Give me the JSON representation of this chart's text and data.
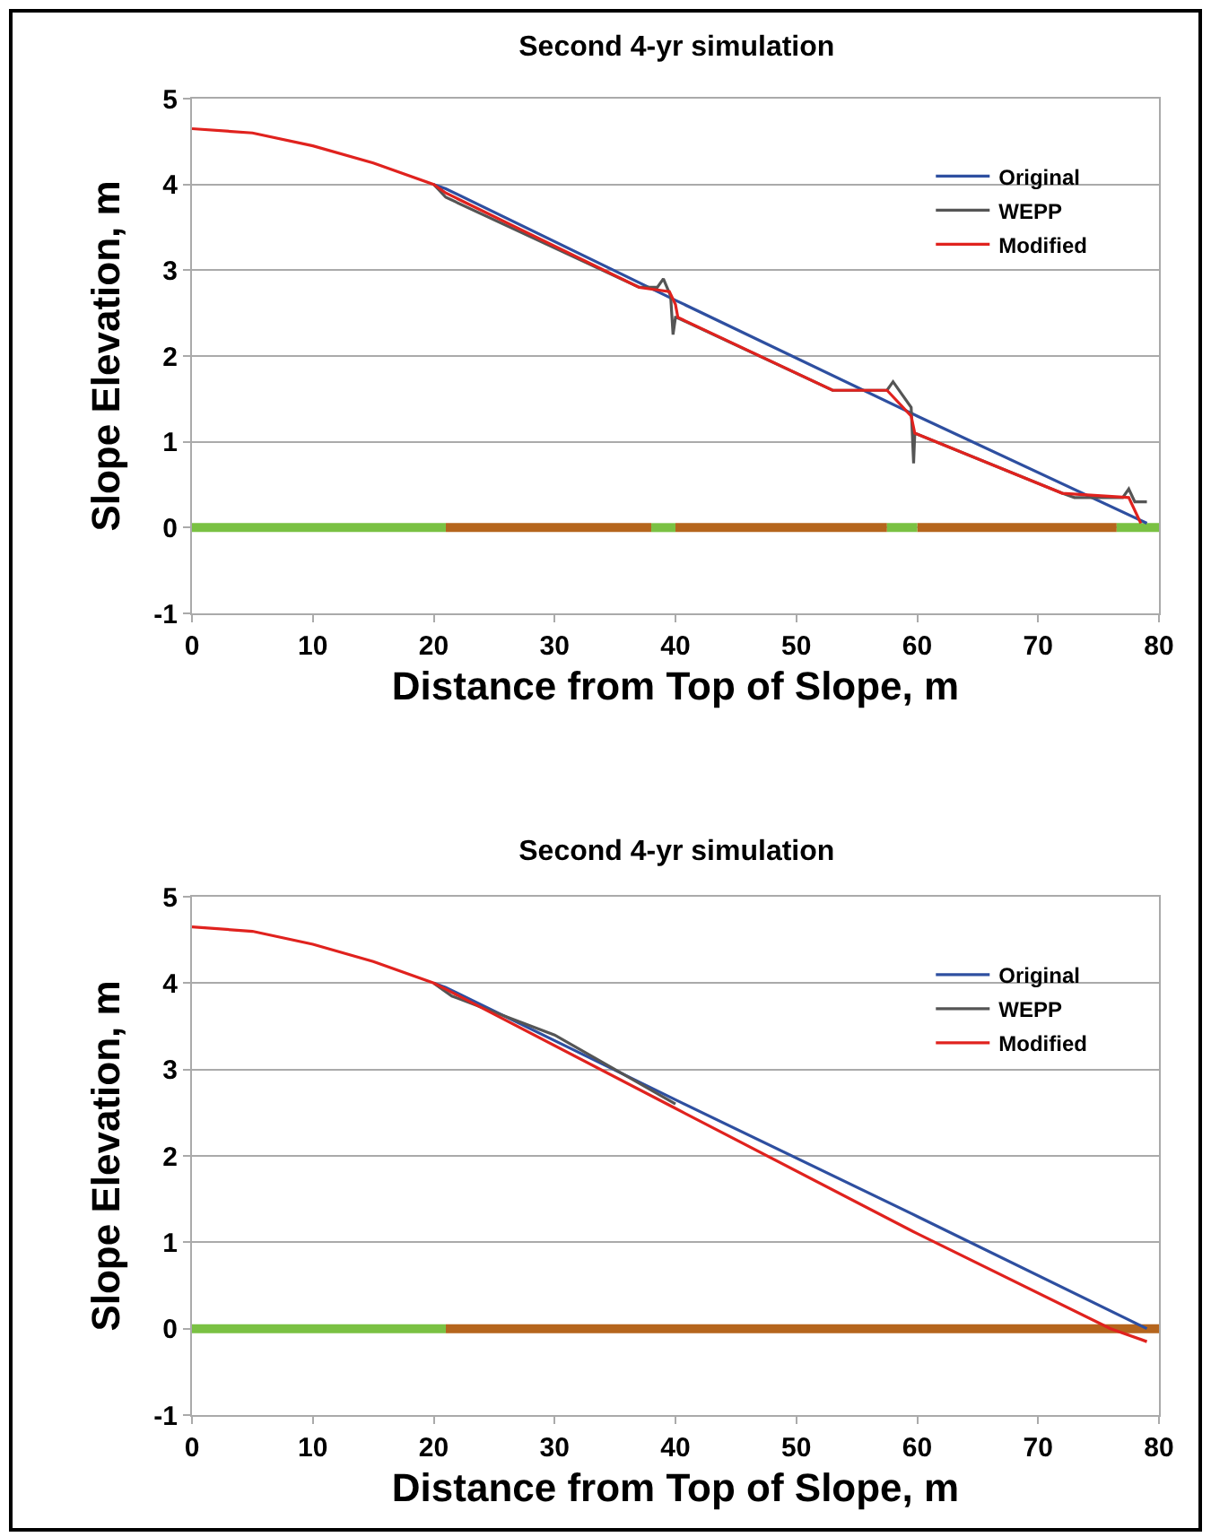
{
  "chart_data": [
    {
      "type": "line",
      "title": "Second 4-yr simulation",
      "xlabel": "Distance from Top of Slope, m",
      "ylabel": "Slope Elevation, m",
      "xlim": [
        0,
        80
      ],
      "xticks": [
        0,
        10,
        20,
        30,
        40,
        50,
        60,
        70,
        80
      ],
      "ylim": [
        -1,
        5
      ],
      "yticks": [
        -1,
        0,
        1,
        2,
        3,
        4,
        5
      ],
      "grid": "y",
      "legend": "top right",
      "series": [
        {
          "color": "#b5651d",
          "x": [
            21,
            38,
            null,
            40,
            57.5,
            null,
            60,
            76.5
          ],
          "values": [
            0,
            0,
            null,
            0,
            0,
            null,
            0,
            0
          ]
        },
        {
          "color": "#7ac143",
          "x": [
            0,
            21,
            null,
            38,
            40,
            null,
            57.5,
            60,
            null,
            76.5,
            80
          ],
          "values": [
            0,
            0,
            null,
            0,
            0,
            null,
            0,
            0,
            null,
            0,
            0
          ]
        },
        {
          "name": "Original",
          "color": "#2e4fa0",
          "x": [
            20,
            21,
            40,
            60,
            79
          ],
          "values": [
            4.0,
            3.95,
            2.65,
            1.3,
            0.05
          ]
        },
        {
          "name": "WEPP",
          "color": "#555555",
          "x": [
            20,
            21,
            37,
            38.5,
            39,
            39.6,
            39.8,
            40,
            40.1,
            53,
            55,
            57.5,
            58,
            59.5,
            59.7,
            59.8,
            72,
            73,
            77,
            77.5,
            78,
            79
          ],
          "values": [
            4.0,
            3.85,
            2.8,
            2.8,
            2.9,
            2.7,
            2.25,
            2.45,
            2.45,
            1.6,
            1.6,
            1.6,
            1.7,
            1.4,
            0.75,
            1.1,
            0.4,
            0.35,
            0.35,
            0.45,
            0.3,
            0.3
          ]
        },
        {
          "name": "Modified",
          "color": "#e0221e",
          "x": [
            0,
            5,
            10,
            15,
            20,
            21,
            37,
            39.5,
            40,
            40.2,
            53,
            57.5,
            59.5,
            59.8,
            72,
            77.5,
            78.5
          ],
          "values": [
            4.65,
            4.6,
            4.45,
            4.25,
            4.0,
            3.9,
            2.8,
            2.75,
            2.6,
            2.45,
            1.6,
            1.6,
            1.3,
            1.1,
            0.4,
            0.35,
            0.05
          ]
        }
      ]
    },
    {
      "type": "line",
      "title": "Second 4-yr simulation",
      "xlabel": "Distance from Top of Slope, m",
      "ylabel": "Slope Elevation, m",
      "xlim": [
        0,
        80
      ],
      "xticks": [
        0,
        10,
        20,
        30,
        40,
        50,
        60,
        70,
        80
      ],
      "ylim": [
        -1,
        5
      ],
      "yticks": [
        -1,
        0,
        1,
        2,
        3,
        4,
        5
      ],
      "grid": "y",
      "legend": "top right",
      "series": [
        {
          "color": "#b5651d",
          "x": [
            21,
            80
          ],
          "values": [
            0,
            0
          ]
        },
        {
          "color": "#7ac143",
          "x": [
            0,
            21
          ],
          "values": [
            0,
            0
          ]
        },
        {
          "name": "Original",
          "color": "#2e4fa0",
          "x": [
            20,
            21,
            40,
            60,
            79
          ],
          "values": [
            4.0,
            3.95,
            2.65,
            1.3,
            0.0
          ]
        },
        {
          "name": "WEPP",
          "color": "#555555",
          "x": [
            20,
            21.5,
            30,
            40
          ],
          "values": [
            4.0,
            3.85,
            3.4,
            2.6
          ]
        },
        {
          "name": "Modified",
          "color": "#e0221e",
          "x": [
            0,
            5,
            10,
            15,
            20,
            21,
            40,
            60,
            76,
            79
          ],
          "values": [
            4.65,
            4.6,
            4.45,
            4.25,
            4.0,
            3.93,
            2.55,
            1.1,
            0.0,
            -0.15
          ]
        }
      ]
    }
  ]
}
